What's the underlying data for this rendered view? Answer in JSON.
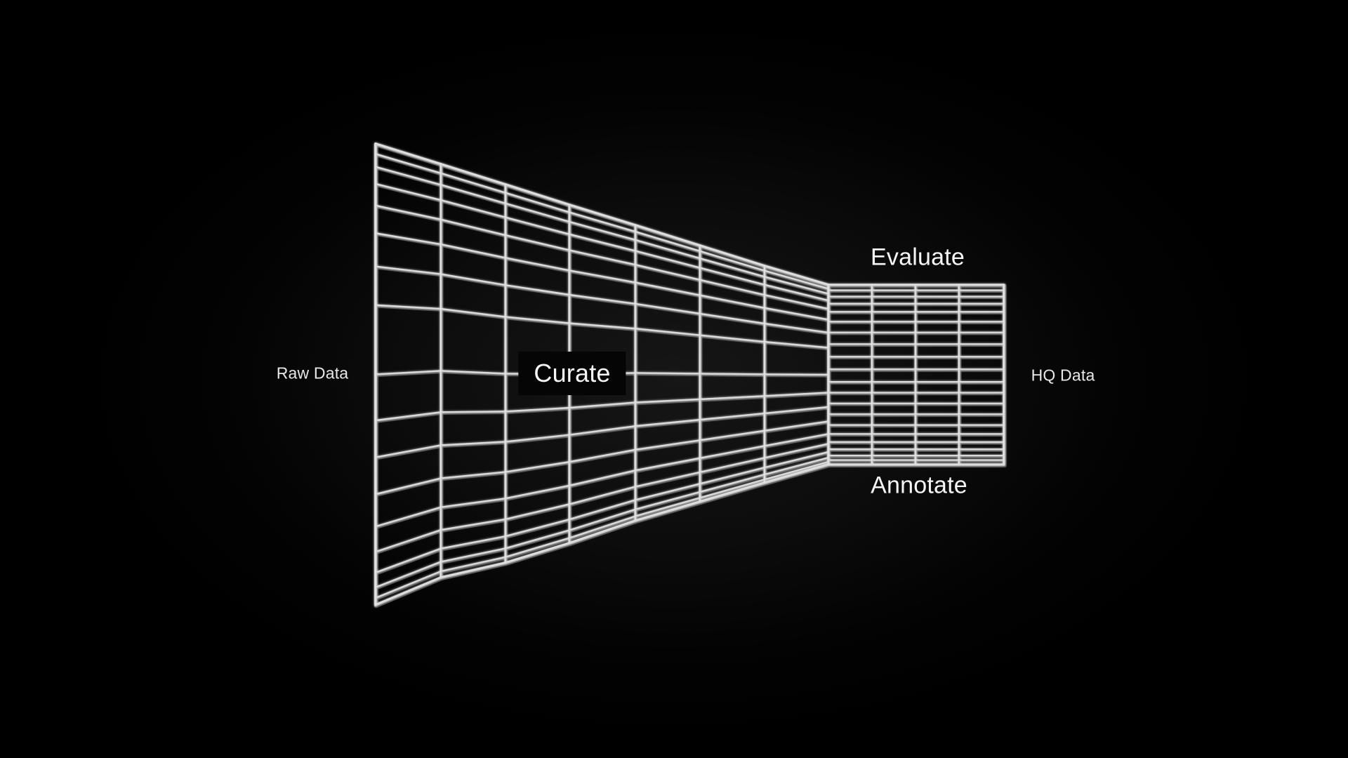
{
  "labels": {
    "input": "Raw Data",
    "output": "HQ Data",
    "curate": "Curate",
    "evaluate": "Evaluate",
    "annotate": "Annotate"
  },
  "colors": {
    "background": "#000000",
    "wire": "#d4d4d4",
    "wire_highlight": "#ffffff",
    "text": "#f2f2f2"
  },
  "graphic": "wireframe funnel grid narrowing from left to right"
}
